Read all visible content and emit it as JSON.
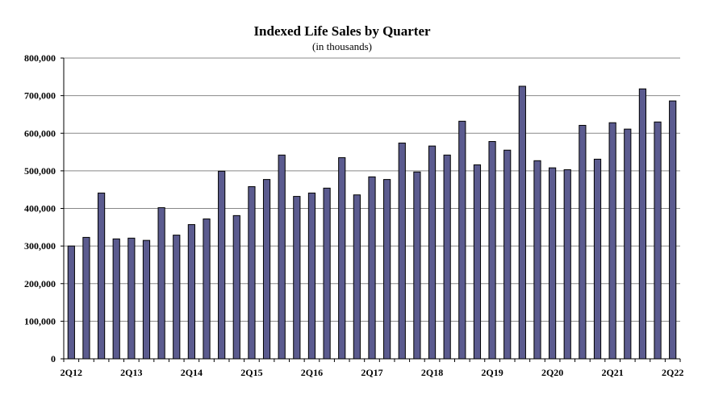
{
  "chart_data": {
    "type": "bar",
    "title": "Indexed Life Sales by Quarter",
    "subtitle": "(in thousands)",
    "xlabel": "",
    "ylabel": "",
    "ylim": [
      0,
      800000
    ],
    "yticks": [
      0,
      100000,
      200000,
      300000,
      400000,
      500000,
      600000,
      700000,
      800000
    ],
    "ytick_labels": [
      "0",
      "100,000",
      "200,000",
      "300,000",
      "400,000",
      "500,000",
      "600,000",
      "700,000",
      "800,000"
    ],
    "grid": true,
    "legend": "none",
    "categories": [
      "2Q12",
      "3Q12",
      "4Q12",
      "1Q13",
      "2Q13",
      "3Q13",
      "4Q13",
      "1Q14",
      "2Q14",
      "3Q14",
      "4Q14",
      "1Q15",
      "2Q15",
      "3Q15",
      "4Q15",
      "1Q16",
      "2Q16",
      "3Q16",
      "4Q16",
      "1Q17",
      "2Q17",
      "3Q17",
      "4Q17",
      "1Q18",
      "2Q18",
      "3Q18",
      "4Q18",
      "1Q19",
      "2Q19",
      "3Q19",
      "4Q19",
      "1Q20",
      "2Q20",
      "3Q20",
      "4Q20",
      "1Q21",
      "2Q21",
      "3Q21",
      "4Q21",
      "1Q22",
      "2Q22"
    ],
    "xtick_labels": [
      {
        "index": 0,
        "label": "2Q12"
      },
      {
        "index": 4,
        "label": "2Q13"
      },
      {
        "index": 8,
        "label": "2Q14"
      },
      {
        "index": 12,
        "label": "2Q15"
      },
      {
        "index": 16,
        "label": "2Q16"
      },
      {
        "index": 20,
        "label": "2Q17"
      },
      {
        "index": 24,
        "label": "2Q18"
      },
      {
        "index": 28,
        "label": "2Q19"
      },
      {
        "index": 32,
        "label": "2Q20"
      },
      {
        "index": 36,
        "label": "2Q21"
      },
      {
        "index": 40,
        "label": "2Q22"
      }
    ],
    "values": [
      300000,
      323000,
      441000,
      319000,
      321000,
      315000,
      402000,
      329000,
      357000,
      372000,
      499000,
      381000,
      458000,
      477000,
      542000,
      432000,
      441000,
      454000,
      535000,
      436000,
      484000,
      477000,
      574000,
      497000,
      566000,
      542000,
      632000,
      516000,
      578000,
      555000,
      725000,
      527000,
      508000,
      503000,
      621000,
      531000,
      628000,
      611000,
      718000,
      630000,
      686000
    ],
    "colors": {
      "bar_fill": "#5b5b8f",
      "bar_stroke": "#000000",
      "grid": "#888888",
      "axis": "#000000"
    }
  }
}
